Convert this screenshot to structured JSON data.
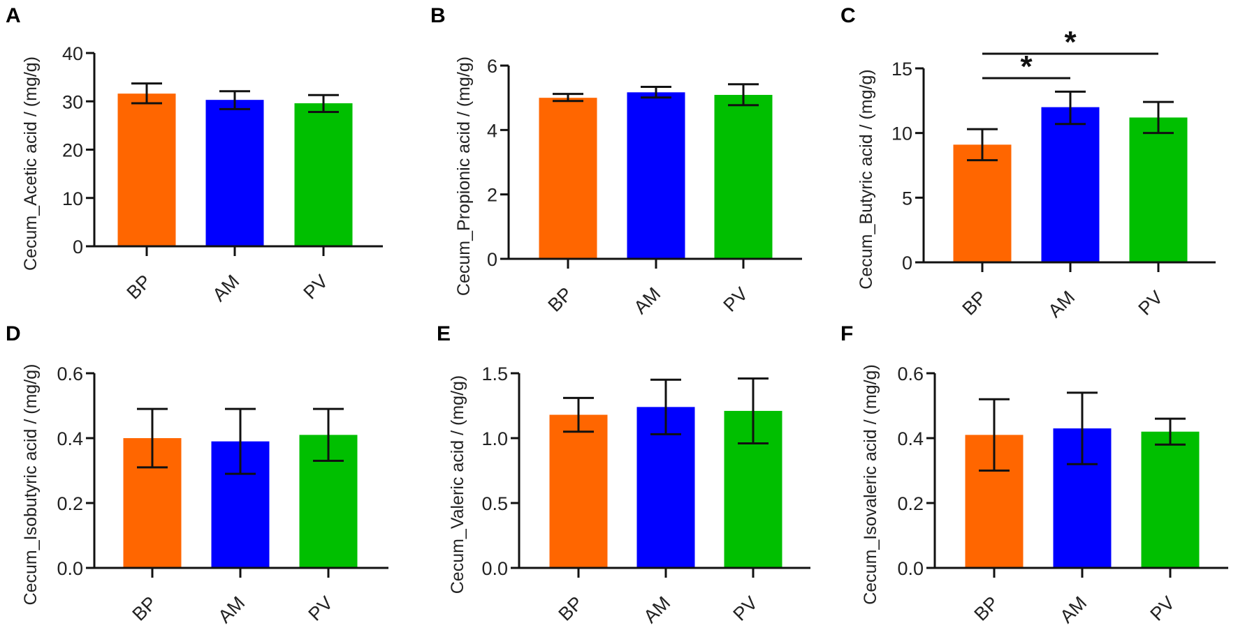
{
  "colors": {
    "BP": "#ff6600",
    "AM": "#0000ff",
    "PV": "#00bf00",
    "axis": "#111111"
  },
  "chart_data": [
    {
      "panel": "A",
      "type": "bar",
      "ylabel": "Cecum_Acetic acid / (mg/g)",
      "categories": [
        "BP",
        "AM",
        "PV"
      ],
      "values": [
        31.6,
        30.3,
        29.6
      ],
      "error_upper": [
        33.7,
        32.1,
        31.3
      ],
      "error_lower": [
        29.6,
        28.4,
        27.8
      ],
      "ylim": [
        0,
        40
      ],
      "yticks": [
        "0",
        "10",
        "20",
        "30",
        "40"
      ],
      "significance": []
    },
    {
      "panel": "B",
      "type": "bar",
      "ylabel": "Cecum_Propionic acid / (mg/g)",
      "categories": [
        "BP",
        "AM",
        "PV"
      ],
      "values": [
        5.0,
        5.17,
        5.09
      ],
      "error_upper": [
        5.12,
        5.34,
        5.42
      ],
      "error_lower": [
        4.9,
        5.01,
        4.77
      ],
      "ylim": [
        0,
        6
      ],
      "yticks": [
        "0",
        "2",
        "4",
        "6"
      ],
      "significance": []
    },
    {
      "panel": "C",
      "type": "bar",
      "ylabel": "Cecum_Butyric acid / (mg/g)",
      "categories": [
        "BP",
        "AM",
        "PV"
      ],
      "values": [
        9.1,
        12.0,
        11.2
      ],
      "error_upper": [
        10.3,
        13.2,
        12.4
      ],
      "error_lower": [
        7.9,
        10.7,
        10.0
      ],
      "ylim": [
        0,
        15
      ],
      "yticks": [
        "0",
        "5",
        "10",
        "15"
      ],
      "significance": [
        {
          "from": "BP",
          "to": "AM",
          "label": "*"
        },
        {
          "from": "BP",
          "to": "PV",
          "label": "*"
        }
      ]
    },
    {
      "panel": "D",
      "type": "bar",
      "ylabel": "Cecum_Isobutyric acid / (mg/g)",
      "categories": [
        "BP",
        "AM",
        "PV"
      ],
      "values": [
        0.4,
        0.39,
        0.41
      ],
      "error_upper": [
        0.49,
        0.49,
        0.49
      ],
      "error_lower": [
        0.31,
        0.29,
        0.33
      ],
      "ylim": [
        0,
        0.6
      ],
      "yticks": [
        "0.0",
        "0.2",
        "0.4",
        "0.6"
      ],
      "significance": []
    },
    {
      "panel": "E",
      "type": "bar",
      "ylabel": "Cecum_Valeric acid / (mg/g)",
      "categories": [
        "BP",
        "AM",
        "PV"
      ],
      "values": [
        1.18,
        1.24,
        1.21
      ],
      "error_upper": [
        1.31,
        1.45,
        1.46
      ],
      "error_lower": [
        1.05,
        1.03,
        0.96
      ],
      "ylim": [
        0,
        1.5
      ],
      "yticks": [
        "0.0",
        "0.5",
        "1.0",
        "1.5"
      ],
      "significance": []
    },
    {
      "panel": "F",
      "type": "bar",
      "ylabel": "Cecum_Isovaleric acid / (mg/g)",
      "categories": [
        "BP",
        "AM",
        "PV"
      ],
      "values": [
        0.41,
        0.43,
        0.42
      ],
      "error_upper": [
        0.52,
        0.54,
        0.46
      ],
      "error_lower": [
        0.3,
        0.32,
        0.38
      ],
      "ylim": [
        0,
        0.6
      ],
      "yticks": [
        "0.0",
        "0.2",
        "0.4",
        "0.6"
      ],
      "significance": []
    }
  ]
}
